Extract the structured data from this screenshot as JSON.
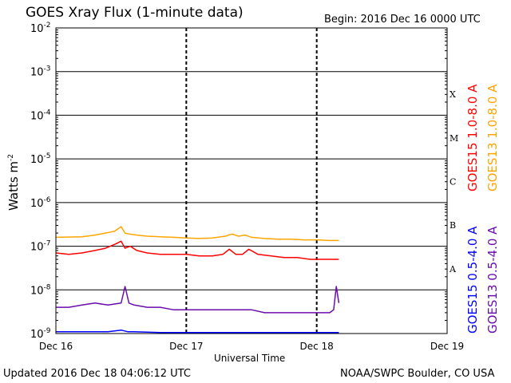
{
  "header": {
    "title": "GOES Xray Flux (1-minute data)",
    "begin": "Begin:  2016 Dec 16 0000 UTC"
  },
  "footer": {
    "updated": "Updated 2016 Dec 18 04:06:12 UTC",
    "credit": "NOAA/SWPC Boulder, CO USA"
  },
  "colors": {
    "goes15_long": "#ff0000",
    "goes13_long": "#ffa500",
    "goes15_short": "#0000ff",
    "goes13_short": "#6a0dad"
  },
  "chart_data": {
    "type": "line",
    "title": "GOES Xray Flux (1-minute data)",
    "xlabel": "Universal Time",
    "ylabel": "Watts m",
    "ylabel_exp": "-2",
    "yscale": "log",
    "ylim": [
      1e-09,
      0.01
    ],
    "xlim": [
      0,
      3
    ],
    "grid": true,
    "x_ticks": [
      {
        "x": 0,
        "label": "Dec 16"
      },
      {
        "x": 1,
        "label": "Dec 17"
      },
      {
        "x": 2,
        "label": "Dec 18"
      },
      {
        "x": 3,
        "label": "Dec 19"
      }
    ],
    "y_ticks": [
      {
        "exp": -2,
        "base": "10",
        "sup": "-2"
      },
      {
        "exp": -3,
        "base": "10",
        "sup": "-3"
      },
      {
        "exp": -4,
        "base": "10",
        "sup": "-4"
      },
      {
        "exp": -5,
        "base": "10",
        "sup": "-5"
      },
      {
        "exp": -6,
        "base": "10",
        "sup": "-6"
      },
      {
        "exp": -7,
        "base": "10",
        "sup": "-7"
      },
      {
        "exp": -8,
        "base": "10",
        "sup": "-8"
      },
      {
        "exp": -9,
        "base": "10",
        "sup": "-9"
      }
    ],
    "flare_classes": [
      {
        "label": "X",
        "exp": -3.5
      },
      {
        "label": "M",
        "exp": -4.5
      },
      {
        "label": "C",
        "exp": -5.5
      },
      {
        "label": "B",
        "exp": -6.5
      },
      {
        "label": "A",
        "exp": -7.5
      }
    ],
    "series": [
      {
        "name": "GOES13 1.0-8.0 A",
        "color": "#ffa500",
        "x": [
          0.0,
          0.2,
          0.3,
          0.38,
          0.45,
          0.5,
          0.53,
          0.56,
          0.62,
          0.7,
          0.8,
          0.9,
          1.0,
          1.1,
          1.2,
          1.3,
          1.35,
          1.4,
          1.45,
          1.5,
          1.6,
          1.7,
          1.8,
          1.9,
          2.0,
          2.1,
          2.17
        ],
        "y": [
          1.6e-07,
          1.65e-07,
          1.8e-07,
          2e-07,
          2.2e-07,
          2.8e-07,
          2e-07,
          1.9e-07,
          1.8e-07,
          1.7e-07,
          1.65e-07,
          1.6e-07,
          1.55e-07,
          1.5e-07,
          1.55e-07,
          1.7e-07,
          1.9e-07,
          1.7e-07,
          1.8e-07,
          1.6e-07,
          1.5e-07,
          1.45e-07,
          1.45e-07,
          1.4e-07,
          1.4e-07,
          1.35e-07,
          1.35e-07
        ]
      },
      {
        "name": "GOES15 1.0-8.0 A",
        "color": "#ff0000",
        "x": [
          0.0,
          0.1,
          0.2,
          0.3,
          0.38,
          0.45,
          0.5,
          0.53,
          0.57,
          0.62,
          0.7,
          0.8,
          0.9,
          1.0,
          1.1,
          1.2,
          1.28,
          1.33,
          1.38,
          1.43,
          1.48,
          1.55,
          1.65,
          1.75,
          1.85,
          1.95,
          2.05,
          2.17
        ],
        "y": [
          7e-08,
          6.5e-08,
          7e-08,
          8e-08,
          9e-08,
          1.1e-07,
          1.3e-07,
          9e-08,
          1e-07,
          8e-08,
          7e-08,
          6.5e-08,
          6.5e-08,
          6.5e-08,
          6e-08,
          6e-08,
          6.5e-08,
          8.5e-08,
          6.5e-08,
          6.5e-08,
          8.5e-08,
          6.5e-08,
          6e-08,
          5.5e-08,
          5.5e-08,
          5e-08,
          5e-08,
          5e-08
        ]
      },
      {
        "name": "GOES13 0.5-4.0 A",
        "color": "#6a0dad",
        "x": [
          0.0,
          0.1,
          0.2,
          0.3,
          0.4,
          0.5,
          0.53,
          0.56,
          0.6,
          0.7,
          0.8,
          0.9,
          1.0,
          1.1,
          1.2,
          1.3,
          1.4,
          1.5,
          1.6,
          1.7,
          1.8,
          1.9,
          2.0,
          2.05,
          2.1,
          2.13,
          2.15,
          2.17
        ],
        "y": [
          4e-09,
          4e-09,
          4.5e-09,
          5e-09,
          4.5e-09,
          5e-09,
          1.2e-08,
          5e-09,
          4.5e-09,
          4e-09,
          4e-09,
          3.5e-09,
          3.5e-09,
          3.5e-09,
          3.5e-09,
          3.5e-09,
          3.5e-09,
          3.5e-09,
          3e-09,
          3e-09,
          3e-09,
          3e-09,
          3e-09,
          3e-09,
          3e-09,
          3.5e-09,
          1.2e-08,
          5e-09
        ]
      },
      {
        "name": "GOES15 0.5-4.0 A",
        "color": "#0000ff",
        "x": [
          0.0,
          0.2,
          0.4,
          0.5,
          0.55,
          0.6,
          0.8,
          1.0,
          1.2,
          1.4,
          1.6,
          1.8,
          2.0,
          2.17
        ],
        "y": [
          1.1e-09,
          1.1e-09,
          1.1e-09,
          1.2e-09,
          1.1e-09,
          1.1e-09,
          1.05e-09,
          1.05e-09,
          1.05e-09,
          1.05e-09,
          1.05e-09,
          1.05e-09,
          1.05e-09,
          1.05e-09
        ]
      }
    ]
  }
}
